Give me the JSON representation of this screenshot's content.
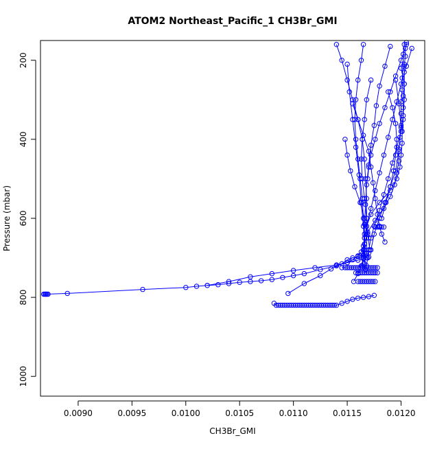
{
  "chart_data": {
    "type": "line",
    "title": "ATOM2 Northeast_Pacific_1 CH3Br_GMI",
    "xlabel": "CH3Br_GMI",
    "ylabel": "Pressure (mbar)",
    "xlim": [
      0.00865,
      0.01222
    ],
    "ylim": [
      1050,
      150
    ],
    "y_reversed": true,
    "grid": false,
    "x_ticks": [
      {
        "value": 0.009,
        "label": "0.0090"
      },
      {
        "value": 0.0095,
        "label": "0.0095"
      },
      {
        "value": 0.01,
        "label": "0.0100"
      },
      {
        "value": 0.0105,
        "label": "0.0105"
      },
      {
        "value": 0.011,
        "label": "0.0110"
      },
      {
        "value": 0.0115,
        "label": "0.0115"
      },
      {
        "value": 0.012,
        "label": "0.0120"
      }
    ],
    "y_ticks": [
      {
        "value": 200,
        "label": "200"
      },
      {
        "value": 400,
        "label": "400"
      },
      {
        "value": 600,
        "label": "600"
      },
      {
        "value": 800,
        "label": "800"
      },
      {
        "value": 1000,
        "label": "1000"
      }
    ],
    "colors": {
      "series": "#0000ff"
    },
    "series": [
      {
        "x": [
          0.01205,
          0.01204,
          0.01204,
          0.01203,
          0.01203,
          0.01203,
          0.01202,
          0.01202,
          0.01202,
          0.01201,
          0.01201,
          0.012,
          0.01199,
          0.01196,
          0.0119,
          0.0118,
          0.01172,
          0.01168,
          0.01166,
          0.01165,
          0.01165,
          0.01164
        ],
        "y": [
          155,
          170,
          190,
          210,
          230,
          260,
          290,
          320,
          350,
          380,
          410,
          440,
          470,
          500,
          530,
          560,
          590,
          620,
          650,
          680,
          700,
          720
        ]
      },
      {
        "x": [
          0.01203,
          0.01202,
          0.01202,
          0.01201,
          0.01201,
          0.012,
          0.012,
          0.012,
          0.01199,
          0.01198,
          0.01198,
          0.01196,
          0.01194,
          0.0119,
          0.01184,
          0.01176,
          0.01169,
          0.01166,
          0.01165,
          0.01164
        ],
        "y": [
          160,
          185,
          215,
          245,
          275,
          305,
          335,
          365,
          395,
          425,
          455,
          485,
          515,
          545,
          575,
          605,
          635,
          665,
          695,
          725
        ]
      },
      {
        "x": [
          0.01165,
          0.01163,
          0.0116,
          0.01158,
          0.01157,
          0.01158,
          0.0116,
          0.01162,
          0.01164,
          0.01165,
          0.01166,
          0.01166,
          0.01165,
          0.01163,
          0.0116,
          0.01156
        ],
        "y": [
          160,
          200,
          250,
          300,
          350,
          400,
          450,
          500,
          550,
          600,
          640,
          680,
          700,
          720,
          740,
          760
        ]
      },
      {
        "x": [
          0.0114,
          0.01145,
          0.0115,
          0.01155,
          0.0116,
          0.01164,
          0.01166,
          0.01167,
          0.01168,
          0.01168,
          0.01168,
          0.01168
        ],
        "y": [
          160,
          200,
          250,
          300,
          350,
          400,
          450,
          500,
          550,
          600,
          650,
          700
        ]
      },
      {
        "x": [
          0.0119,
          0.01185,
          0.0118,
          0.01177,
          0.01175,
          0.01172,
          0.0117,
          0.01168,
          0.01167,
          0.01166,
          0.01166,
          0.01166
        ],
        "y": [
          165,
          215,
          265,
          315,
          365,
          415,
          465,
          515,
          565,
          615,
          665,
          715
        ]
      },
      {
        "x": [
          0.0115,
          0.01152,
          0.01155,
          0.01158,
          0.01161,
          0.01163,
          0.01165,
          0.01166,
          0.01167
        ],
        "y": [
          210,
          280,
          350,
          420,
          490,
          560,
          620,
          680,
          730
        ]
      },
      {
        "x": [
          0.01195,
          0.01198,
          0.012,
          0.01198,
          0.01195,
          0.0119,
          0.01185,
          0.0118,
          0.01175,
          0.01172
        ],
        "y": [
          250,
          310,
          370,
          430,
          480,
          520,
          560,
          600,
          640,
          680
        ]
      },
      {
        "x": [
          0.01155,
          0.0116,
          0.01165,
          0.0117,
          0.01172,
          0.01174,
          0.01176,
          0.01178,
          0.0118,
          0.01182,
          0.01185
        ],
        "y": [
          310,
          350,
          390,
          430,
          470,
          510,
          550,
          590,
          620,
          640,
          660
        ]
      },
      {
        "x": [
          0.0121,
          0.01205,
          0.012,
          0.01196,
          0.01192,
          0.01188,
          0.01184,
          0.0118,
          0.01176,
          0.01172,
          0.01168,
          0.01166,
          0.01165,
          0.01163,
          0.0116,
          0.01155,
          0.0115,
          0.0114,
          0.01125,
          0.0111,
          0.011,
          0.0109,
          0.0108,
          0.0107,
          0.0106,
          0.0105,
          0.0104,
          0.0103,
          0.0102,
          0.0101,
          0.01,
          0.0096,
          0.0089,
          0.0087
        ],
        "y": [
          170,
          215,
          260,
          305,
          350,
          395,
          440,
          485,
          530,
          575,
          620,
          650,
          670,
          685,
          695,
          705,
          712,
          720,
          730,
          740,
          745,
          750,
          755,
          758,
          760,
          762,
          765,
          768,
          770,
          772,
          775,
          780,
          790,
          792
        ]
      },
      {
        "x": [
          0.00868,
          0.00869,
          0.0087,
          0.00871,
          0.00872
        ],
        "y": [
          792,
          792,
          792,
          792,
          792
        ]
      },
      {
        "x": [
          0.0102,
          0.0104,
          0.0106,
          0.0108,
          0.011,
          0.0112,
          0.0114,
          0.0115,
          0.0116,
          0.01165,
          0.0117
        ],
        "y": [
          770,
          760,
          748,
          740,
          732,
          725,
          718,
          712,
          706,
          702,
          698
        ]
      },
      {
        "x": [
          0.01095,
          0.0111,
          0.01125,
          0.01135,
          0.01145,
          0.0115,
          0.01155,
          0.0116,
          0.01162,
          0.01165,
          0.01168,
          0.0117
        ],
        "y": [
          790,
          765,
          745,
          728,
          715,
          705,
          700,
          697,
          695,
          692,
          690,
          688
        ]
      },
      {
        "x": [
          0.01082,
          0.01084,
          0.01086,
          0.01088,
          0.0109,
          0.01092,
          0.01094,
          0.01096,
          0.01098,
          0.011,
          0.01102,
          0.01104,
          0.01106,
          0.01108,
          0.0111,
          0.01112,
          0.01114,
          0.01116,
          0.01118,
          0.0112,
          0.01122,
          0.01124,
          0.01126,
          0.01128,
          0.0113,
          0.01132,
          0.01134,
          0.01136,
          0.01138,
          0.0114,
          0.01145,
          0.0115,
          0.01155,
          0.0116,
          0.01165,
          0.0117,
          0.01175
        ],
        "y": [
          815,
          820,
          820,
          820,
          820,
          820,
          820,
          820,
          820,
          820,
          820,
          820,
          820,
          820,
          820,
          820,
          820,
          820,
          820,
          820,
          820,
          820,
          820,
          820,
          820,
          820,
          820,
          820,
          820,
          820,
          815,
          810,
          805,
          802,
          800,
          798,
          795
        ]
      },
      {
        "x": [
          0.01145,
          0.01148,
          0.0115,
          0.01152,
          0.01154,
          0.01156,
          0.01158,
          0.0116,
          0.01162,
          0.01164,
          0.01166,
          0.01168,
          0.0117,
          0.01172,
          0.01174,
          0.01176,
          0.01178
        ],
        "y": [
          725,
          725,
          725,
          725,
          725,
          725,
          725,
          725,
          725,
          725,
          725,
          725,
          725,
          725,
          725,
          725,
          725
        ]
      },
      {
        "x": [
          0.01158,
          0.0116,
          0.01162,
          0.01164,
          0.01166,
          0.01168,
          0.0117,
          0.01172,
          0.01174,
          0.01176,
          0.01178
        ],
        "y": [
          738,
          738,
          738,
          738,
          738,
          738,
          738,
          738,
          738,
          738,
          738
        ]
      },
      {
        "x": [
          0.0116,
          0.01162,
          0.01164,
          0.01166,
          0.01168,
          0.0117,
          0.01172,
          0.01174,
          0.01176
        ],
        "y": [
          760,
          760,
          760,
          760,
          760,
          760,
          760,
          760,
          760
        ]
      },
      {
        "x": [
          0.01176,
          0.01178,
          0.0118,
          0.01182,
          0.01184
        ],
        "y": [
          622,
          622,
          622,
          622,
          622
        ]
      },
      {
        "x": [
          0.01205,
          0.012,
          0.01195,
          0.0119,
          0.01185,
          0.0118,
          0.01176,
          0.01172,
          0.0117,
          0.01169
        ],
        "y": [
          160,
          200,
          240,
          280,
          320,
          360,
          400,
          440,
          470,
          500
        ]
      },
      {
        "x": [
          0.01188,
          0.01192,
          0.01195,
          0.01196,
          0.01195,
          0.01193,
          0.0119,
          0.01186,
          0.01182
        ],
        "y": [
          280,
          320,
          360,
          400,
          440,
          480,
          520,
          560,
          600
        ]
      },
      {
        "x": [
          0.01148,
          0.0115,
          0.01153,
          0.01157,
          0.01162,
          0.01166,
          0.01169,
          0.01171
        ],
        "y": [
          400,
          440,
          480,
          520,
          560,
          600,
          640,
          680
        ]
      },
      {
        "x": [
          0.012,
          0.01203,
          0.01203,
          0.01202,
          0.012,
          0.01196,
          0.01192,
          0.01188,
          0.01184,
          0.0118,
          0.01175,
          0.01172,
          0.0117,
          0.01169,
          0.01168
        ],
        "y": [
          220,
          260,
          300,
          340,
          380,
          420,
          460,
          500,
          540,
          580,
          620,
          650,
          680,
          700,
          720
        ]
      },
      {
        "x": [
          0.01172,
          0.01168,
          0.01166,
          0.01164,
          0.01163,
          0.01164,
          0.01166,
          0.01168,
          0.0117
        ],
        "y": [
          250,
          300,
          350,
          400,
          450,
          500,
          550,
          600,
          650
        ]
      }
    ]
  }
}
